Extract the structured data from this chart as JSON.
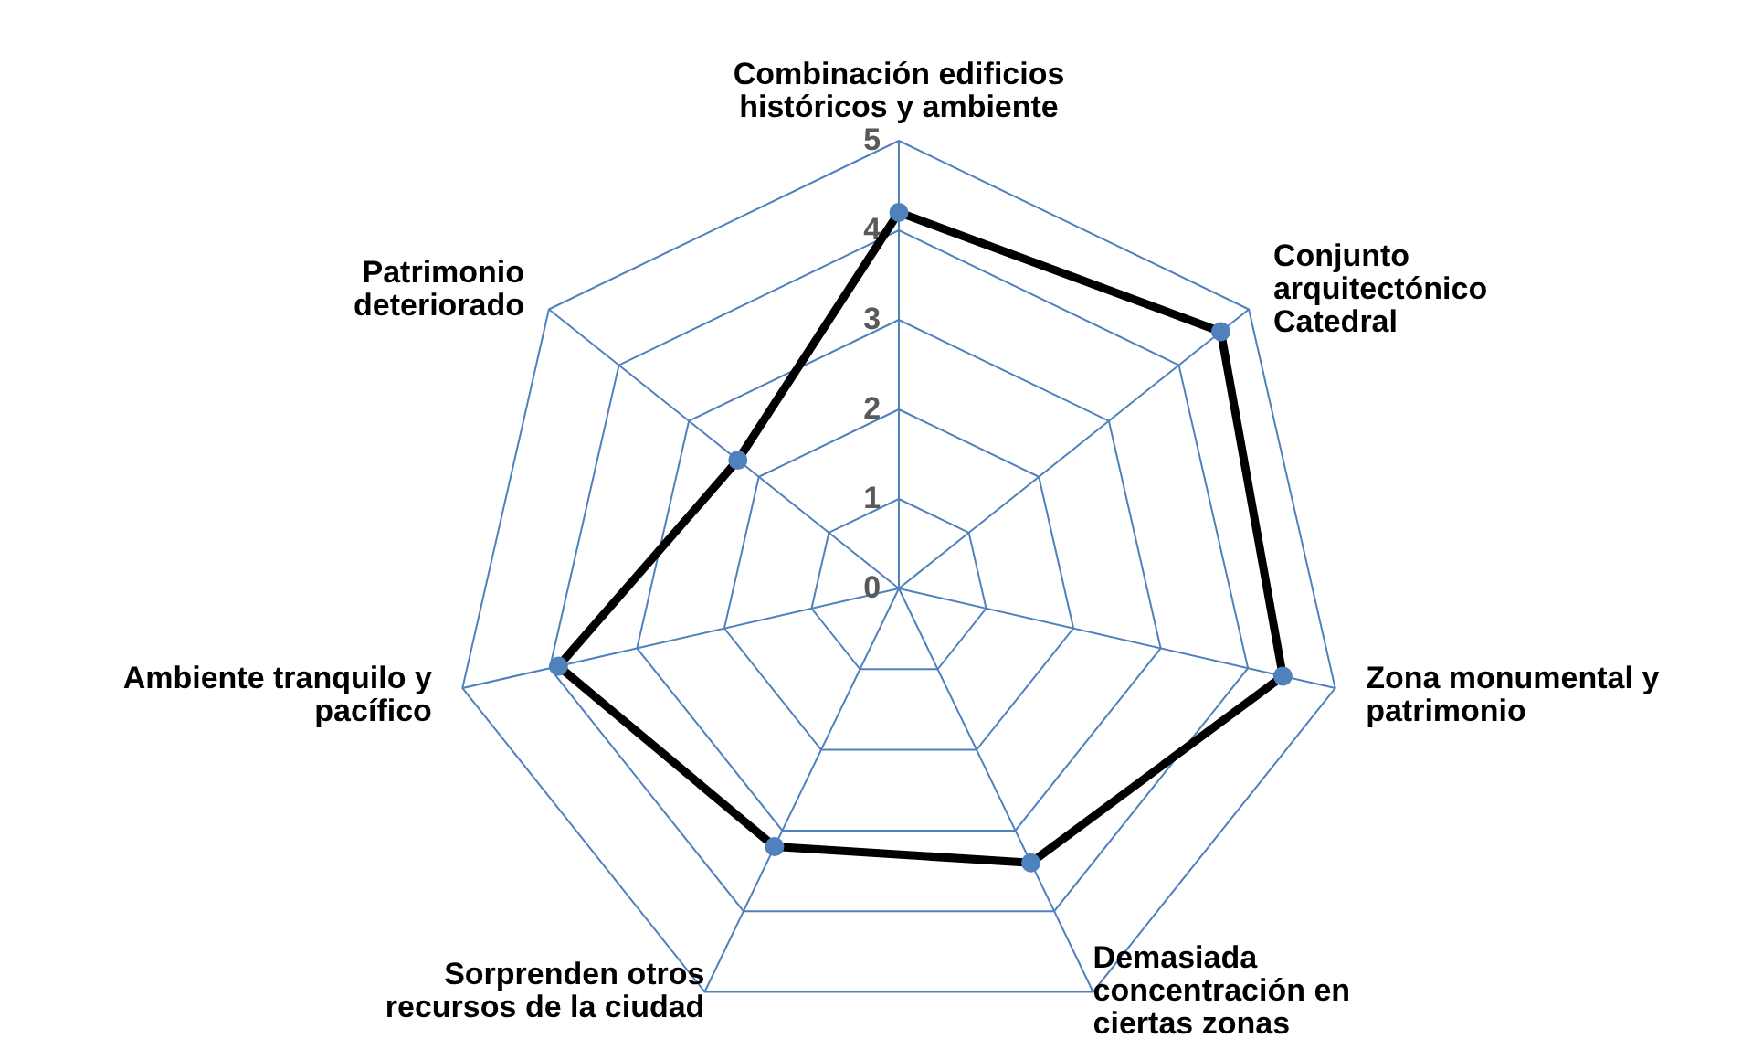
{
  "chart_data": {
    "type": "radar",
    "categories": [
      "Combinación edificios históricos y ambiente",
      "Conjunto arquitectónico Catedral",
      "Zona monumental y patrimonio",
      "Demasiada concentración en ciertas zonas",
      "Sorprenden otros recursos de la ciudad",
      "Ambiente tranquilo y pacífico",
      "Patrimonio deteriorado"
    ],
    "series": [
      {
        "color": "#000000",
        "values": [
          4.2,
          4.6,
          4.4,
          3.4,
          3.2,
          3.9,
          2.3
        ]
      }
    ],
    "ylim": [
      0,
      5
    ],
    "yticks": [
      0,
      1,
      2,
      3,
      4,
      5
    ],
    "grid": true,
    "marker": "circle"
  }
}
